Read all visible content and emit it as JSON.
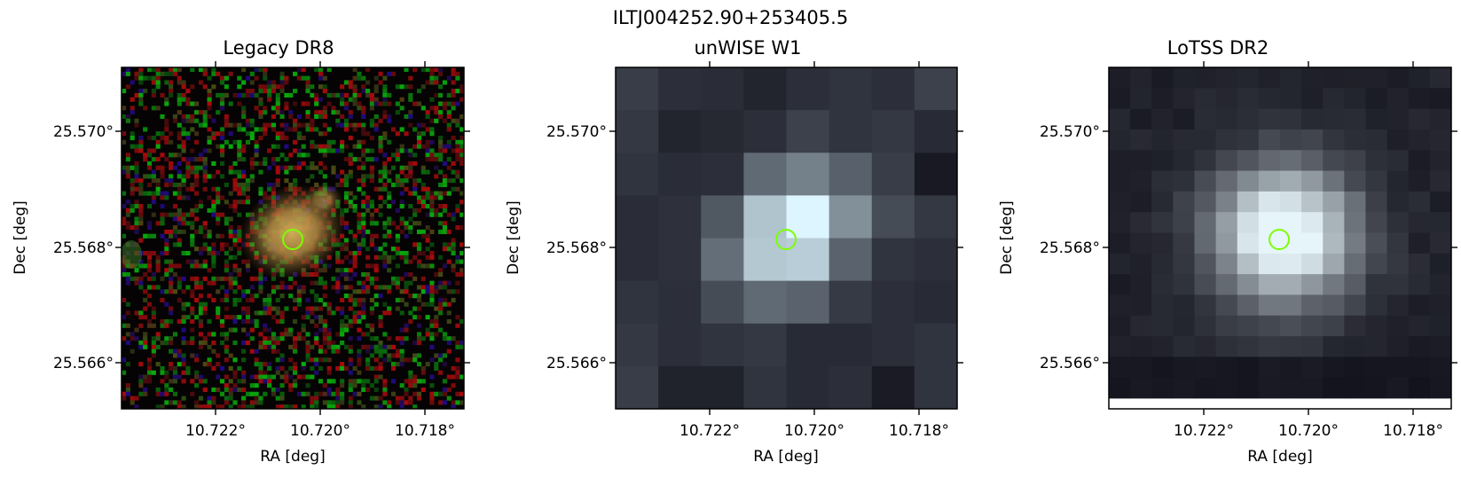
{
  "figure": {
    "title": "ILTJ004252.90+253405.5",
    "panels": [
      {
        "title": "Legacy DR8",
        "x_ticks": [
          "10.722°",
          "10.720°",
          "10.718°"
        ],
        "y_ticks": [
          "25.570°",
          "25.568°",
          "25.566°"
        ],
        "xlabel": "RA [deg]",
        "ylabel": "Dec [deg]",
        "marker_color": "#7cff00"
      },
      {
        "title": "unWISE W1",
        "x_ticks": [
          "10.722°",
          "10.720°",
          "10.718°"
        ],
        "y_ticks": [
          "25.570°",
          "25.568°",
          "25.566°"
        ],
        "xlabel": "RA [deg]",
        "ylabel": "Dec [deg]",
        "marker_color": "#7cff00"
      },
      {
        "title": "LoTSS DR2",
        "x_ticks": [
          "10.722°",
          "10.720°",
          "10.718°"
        ],
        "y_ticks": [
          "25.570°",
          "25.568°",
          "25.566°"
        ],
        "xlabel": "RA [deg]",
        "ylabel": "Dec [deg]",
        "marker_color": "#7cff00"
      }
    ]
  }
}
